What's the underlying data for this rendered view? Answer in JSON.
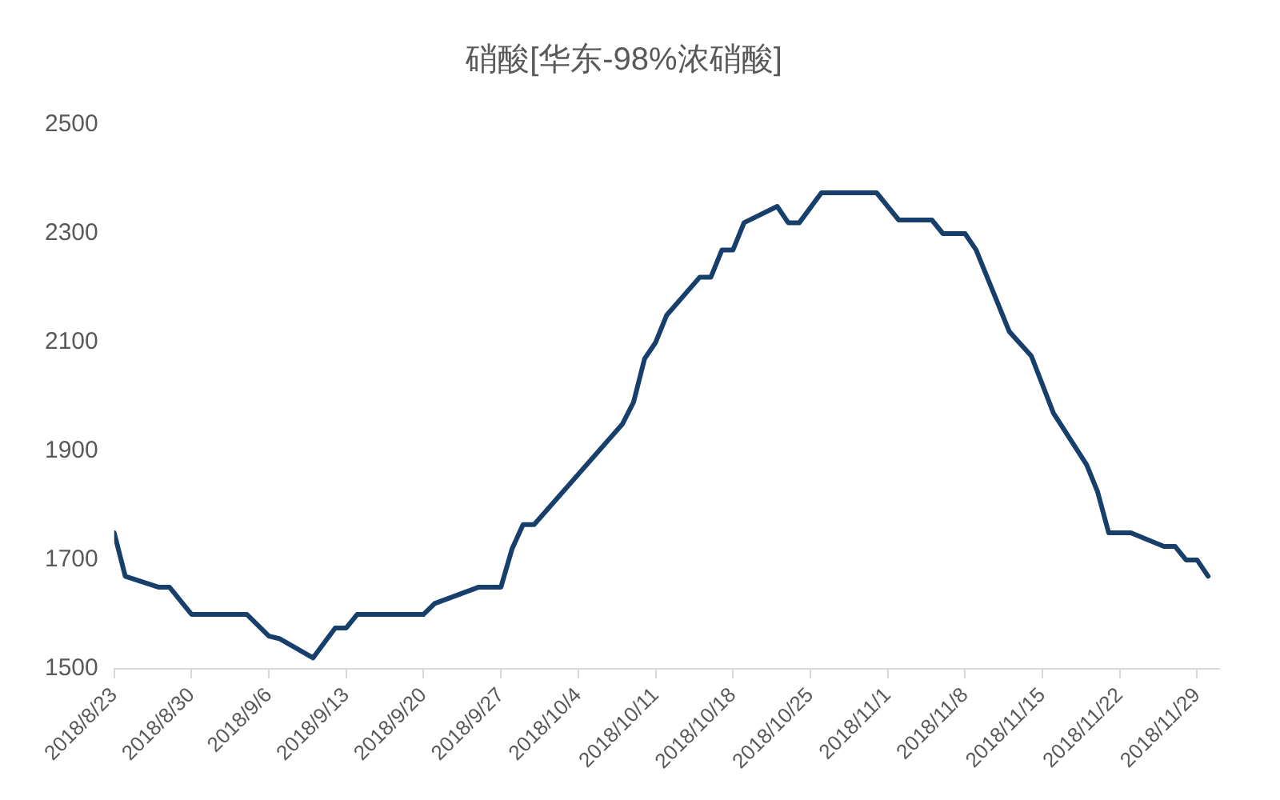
{
  "chart_data": {
    "type": "line",
    "title": "硝酸[华东-98%浓硝酸]",
    "x": [
      "2018-08-23",
      "2018-08-24",
      "2018-08-27",
      "2018-08-28",
      "2018-08-30",
      "2018-09-04",
      "2018-09-06",
      "2018-09-07",
      "2018-09-10",
      "2018-09-12",
      "2018-09-13",
      "2018-09-14",
      "2018-09-20",
      "2018-09-21",
      "2018-09-25",
      "2018-09-27",
      "2018-09-28",
      "2018-09-29",
      "2018-09-30",
      "2018-10-08",
      "2018-10-09",
      "2018-10-10",
      "2018-10-11",
      "2018-10-12",
      "2018-10-15",
      "2018-10-16",
      "2018-10-17",
      "2018-10-18",
      "2018-10-19",
      "2018-10-22",
      "2018-10-23",
      "2018-10-24",
      "2018-10-26",
      "2018-10-31",
      "2018-11-02",
      "2018-11-05",
      "2018-11-06",
      "2018-11-08",
      "2018-11-09",
      "2018-11-12",
      "2018-11-14",
      "2018-11-16",
      "2018-11-19",
      "2018-11-20",
      "2018-11-21",
      "2018-11-23",
      "2018-11-26",
      "2018-11-27",
      "2018-11-28",
      "2018-11-29",
      "2018-11-30"
    ],
    "series": [
      {
        "color": "#173f6c",
        "values": [
          1750,
          1670,
          1650,
          1650,
          1600,
          1600,
          1560,
          1555,
          1520,
          1575,
          1575,
          1600,
          1600,
          1620,
          1650,
          1650,
          1720,
          1765,
          1765,
          1950,
          1990,
          2070,
          2100,
          2150,
          2220,
          2220,
          2270,
          2270,
          2320,
          2350,
          2320,
          2320,
          2375,
          2375,
          2325,
          2325,
          2300,
          2300,
          2270,
          2120,
          2075,
          1970,
          1875,
          1825,
          1750,
          1750,
          1725,
          1725,
          1700,
          1700,
          1670
        ]
      }
    ],
    "xlim": [
      "2018-08-23",
      "2018-12-01"
    ],
    "xticks": [
      {
        "value": "2018-08-23",
        "label": "2018/8/23"
      },
      {
        "value": "2018-08-30",
        "label": "2018/8/30"
      },
      {
        "value": "2018-09-06",
        "label": "2018/9/6"
      },
      {
        "value": "2018-09-13",
        "label": "2018/9/13"
      },
      {
        "value": "2018-09-20",
        "label": "2018/9/20"
      },
      {
        "value": "2018-09-27",
        "label": "2018/9/27"
      },
      {
        "value": "2018-10-04",
        "label": "2018/10/4"
      },
      {
        "value": "2018-10-11",
        "label": "2018/10/11"
      },
      {
        "value": "2018-10-18",
        "label": "2018/10/18"
      },
      {
        "value": "2018-10-25",
        "label": "2018/10/25"
      },
      {
        "value": "2018-11-01",
        "label": "2018/11/1"
      },
      {
        "value": "2018-11-08",
        "label": "2018/11/8"
      },
      {
        "value": "2018-11-15",
        "label": "2018/11/15"
      },
      {
        "value": "2018-11-22",
        "label": "2018/11/22"
      },
      {
        "value": "2018-11-29",
        "label": "2018/11/29"
      }
    ],
    "ylim": [
      1500,
      2500
    ],
    "yticks": [
      1500,
      1700,
      1900,
      2100,
      2300,
      2500
    ],
    "grid": false,
    "legend": false,
    "marker": "none",
    "line_style": "solid"
  }
}
